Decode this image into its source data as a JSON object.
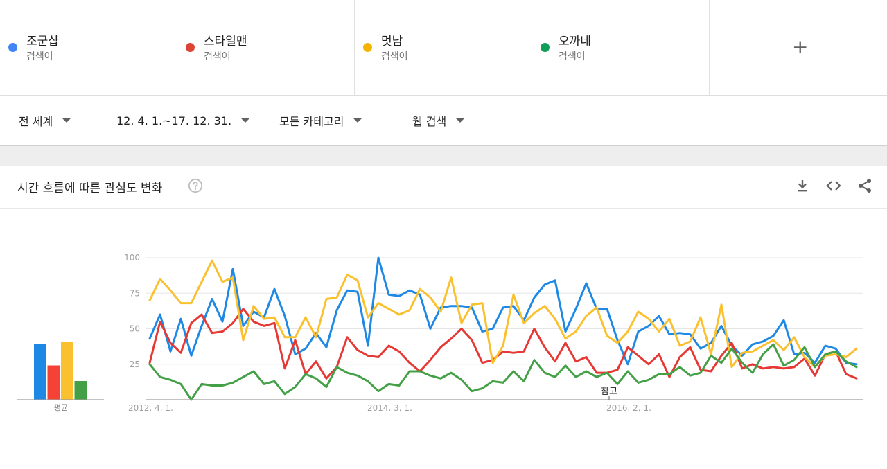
{
  "terms": [
    {
      "name": "조군샵",
      "sub": "검색어",
      "color": "#4285f4"
    },
    {
      "name": "스타일맨",
      "sub": "검색어",
      "color": "#db4437"
    },
    {
      "name": "멋남",
      "sub": "검색어",
      "color": "#f4b400"
    },
    {
      "name": "오까네",
      "sub": "검색어",
      "color": "#0f9d58"
    }
  ],
  "add_term_symbol": "+",
  "filters": {
    "region": "전 세계",
    "date_range": "12. 4. 1.~17. 12. 31.",
    "category": "모든 카테고리",
    "search_type": "웹 검색"
  },
  "card": {
    "title": "시간 흐름에 따른 관심도 변화",
    "icons": [
      "help-icon",
      "download-icon",
      "embed-icon",
      "share-icon"
    ]
  },
  "chart_data": {
    "type": "line",
    "title": "",
    "xlabel": "",
    "ylabel": "",
    "ylim": [
      0,
      100
    ],
    "yticks": [
      25,
      50,
      75,
      100
    ],
    "grid": true,
    "x_tick_labels": [
      "2012. 4. 1.",
      "2014. 3. 1.",
      "2016. 2. 1."
    ],
    "annotation": "참고",
    "average_label": "평균",
    "averages": [
      {
        "series": "조군샵",
        "value": 54,
        "color": "#1e88e5"
      },
      {
        "series": "스타일맨",
        "value": 33,
        "color": "#f44336"
      },
      {
        "series": "멋남",
        "value": 56,
        "color": "#fbc02d"
      },
      {
        "series": "오까네",
        "value": 18,
        "color": "#43a047"
      }
    ],
    "series": [
      {
        "name": "조군샵",
        "color": "#1e88e5",
        "values": [
          43,
          60,
          34,
          57,
          31,
          52,
          71,
          55,
          92,
          52,
          62,
          58,
          78,
          59,
          32,
          36,
          47,
          37,
          63,
          77,
          76,
          38,
          100,
          74,
          73,
          77,
          74,
          50,
          65,
          66,
          66,
          65,
          48,
          50,
          65,
          66,
          56,
          72,
          81,
          84,
          48,
          64,
          82,
          64,
          64,
          42,
          25,
          48,
          52,
          59,
          46,
          47,
          46,
          36,
          40,
          52,
          38,
          31,
          39,
          41,
          45,
          56,
          32,
          33,
          26,
          38,
          36,
          26,
          25
        ]
      },
      {
        "name": "스타일맨",
        "color": "#e53935",
        "values": [
          26,
          55,
          40,
          33,
          54,
          60,
          47,
          48,
          54,
          64,
          55,
          52,
          54,
          22,
          42,
          18,
          27,
          15,
          23,
          44,
          35,
          31,
          30,
          38,
          34,
          26,
          20,
          28,
          37,
          43,
          50,
          42,
          26,
          28,
          34,
          33,
          34,
          50,
          37,
          27,
          40,
          27,
          30,
          19,
          19,
          21,
          37,
          31,
          25,
          32,
          16,
          30,
          37,
          21,
          20,
          31,
          40,
          22,
          25,
          22,
          23,
          22,
          23,
          29,
          17,
          32,
          34,
          18,
          15
        ]
      },
      {
        "name": "멋남",
        "color": "#fbc02d",
        "values": [
          70,
          85,
          77,
          68,
          68,
          83,
          98,
          83,
          86,
          42,
          66,
          57,
          58,
          44,
          44,
          58,
          44,
          71,
          72,
          88,
          84,
          58,
          68,
          64,
          60,
          63,
          78,
          72,
          62,
          86,
          54,
          67,
          68,
          26,
          38,
          74,
          54,
          61,
          66,
          57,
          43,
          48,
          59,
          65,
          45,
          40,
          48,
          62,
          57,
          48,
          57,
          38,
          41,
          58,
          32,
          67,
          23,
          33,
          34,
          38,
          42,
          35,
          44,
          30,
          23,
          31,
          32,
          30,
          36
        ]
      },
      {
        "name": "오까네",
        "color": "#43a047",
        "values": [
          25,
          16,
          14,
          11,
          0,
          11,
          10,
          10,
          12,
          16,
          20,
          11,
          13,
          4,
          9,
          18,
          15,
          9,
          23,
          19,
          17,
          13,
          6,
          11,
          10,
          20,
          20,
          17,
          15,
          19,
          14,
          6,
          8,
          13,
          12,
          20,
          13,
          28,
          19,
          16,
          24,
          16,
          20,
          16,
          19,
          11,
          20,
          12,
          14,
          18,
          18,
          23,
          17,
          19,
          31,
          26,
          36,
          26,
          19,
          32,
          39,
          24,
          28,
          37,
          23,
          32,
          34,
          27,
          23
        ]
      }
    ]
  }
}
